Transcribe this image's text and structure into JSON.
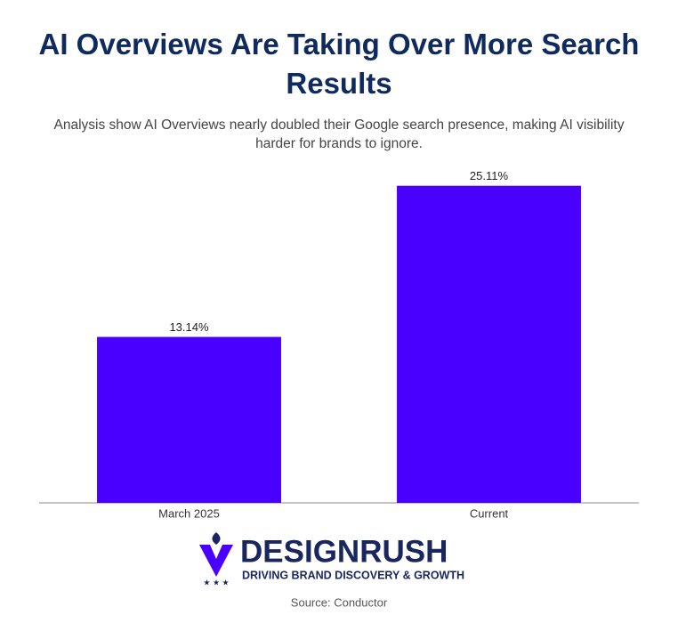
{
  "chart_data": {
    "type": "bar",
    "title": "AI Overviews Are Taking Over More Search Results",
    "subtitle": "Analysis show AI Overviews nearly doubled their Google search presence, making AI visibility harder for brands to ignore.",
    "categories": [
      "March 2025",
      "Current"
    ],
    "values": [
      13.14,
      25.11
    ],
    "value_labels": [
      "13.14%",
      "25.11%"
    ],
    "color": "#4a00ff",
    "ylim": [
      0,
      26.5
    ],
    "source": "Source: Conductor"
  },
  "logo": {
    "name": "DESIGNRUSH",
    "tagline": "DRIVING BRAND DISCOVERY & GROWTH"
  }
}
